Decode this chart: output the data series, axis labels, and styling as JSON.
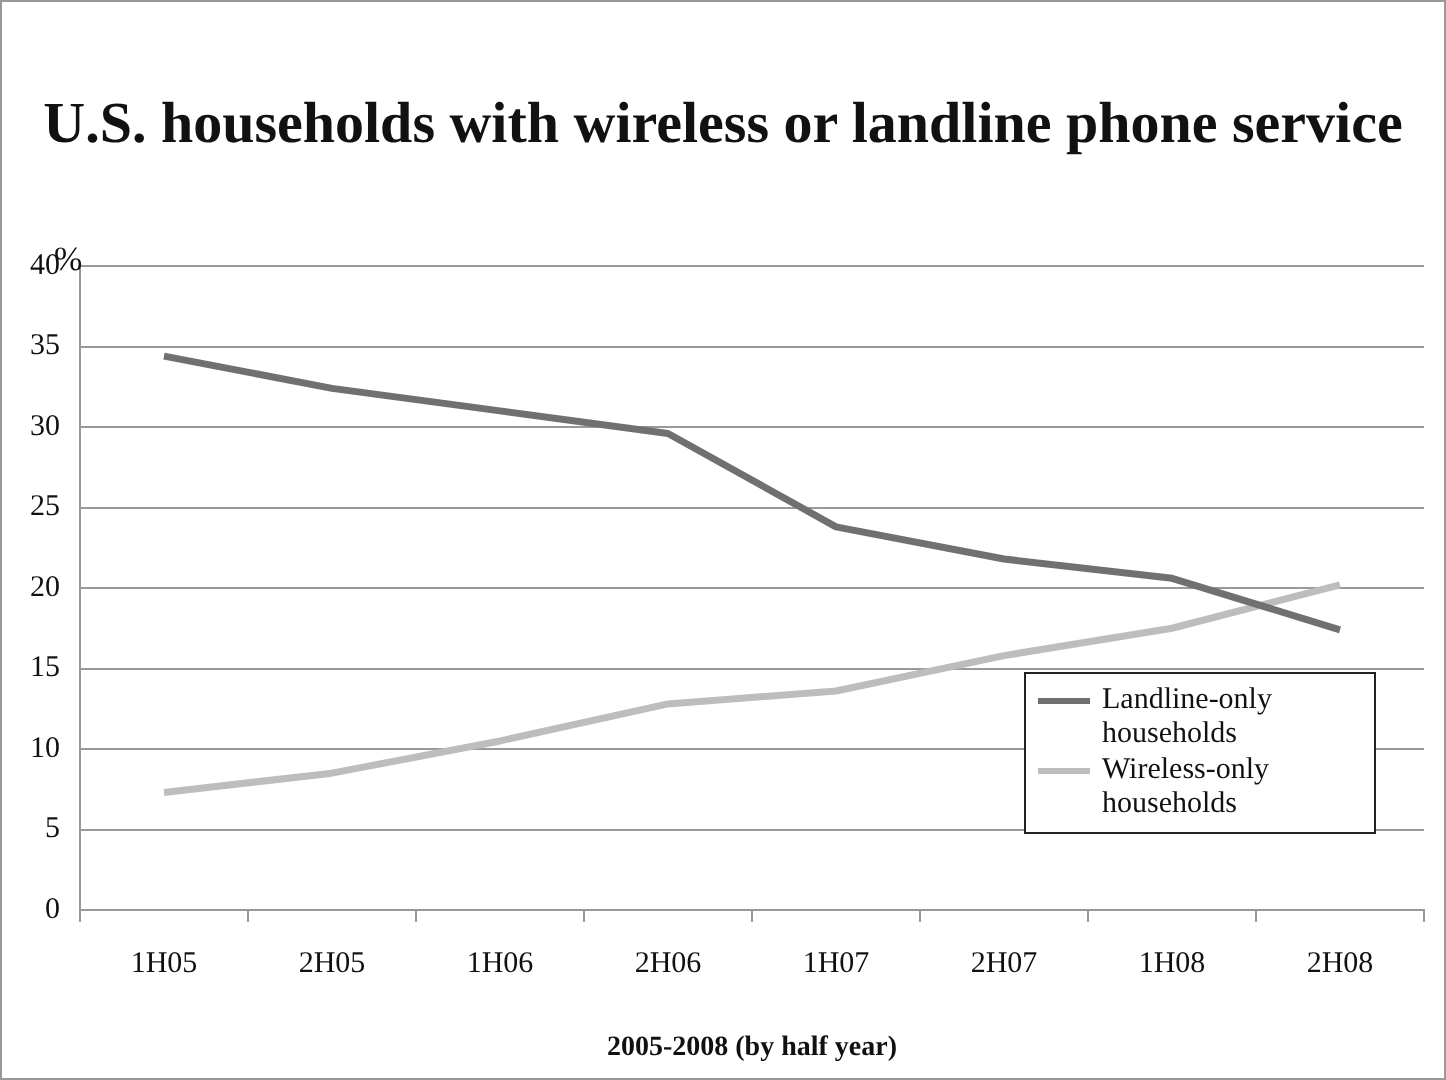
{
  "chart_data": {
    "type": "line",
    "title": "U.S. households with wireless or landline phone service",
    "xlabel": "2005-2008 (by half year)",
    "ylabel": "%",
    "categories": [
      "1H05",
      "2H05",
      "1H06",
      "2H06",
      "1H07",
      "2H07",
      "1H08",
      "2H08"
    ],
    "series": [
      {
        "name": "Landline-only households",
        "color": "#707070",
        "values": [
          34.4,
          32.4,
          31.0,
          29.6,
          23.8,
          21.8,
          20.6,
          17.4
        ]
      },
      {
        "name": "Wireless-only households",
        "color": "#bdbdbd",
        "values": [
          7.3,
          8.5,
          10.5,
          12.8,
          13.6,
          15.8,
          17.5,
          20.2
        ]
      }
    ],
    "ylim": [
      0,
      40
    ],
    "yticks": [
      0,
      5,
      10,
      15,
      20,
      25,
      30,
      35,
      40
    ],
    "grid": "y",
    "legend": "bottom right",
    "marker": "none",
    "line_style": "solid"
  }
}
